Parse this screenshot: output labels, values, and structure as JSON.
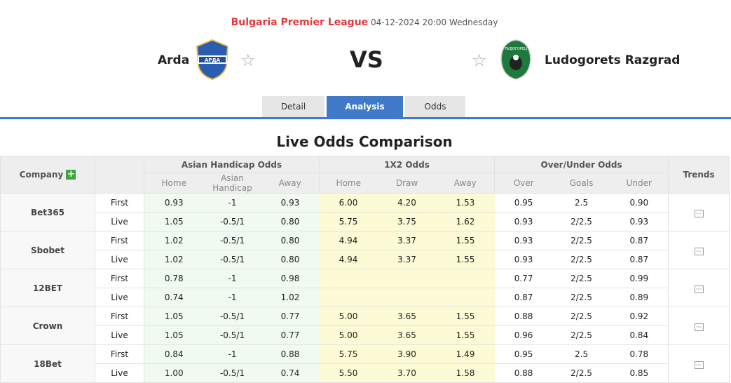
{
  "header": {
    "league": "Bulgaria Premier League",
    "datetime": "04-12-2024 20:00 Wednesday",
    "home": "Arda",
    "away": "Ludogorets Razgrad",
    "vs": "VS",
    "home_logo_text": "АРДА",
    "away_logo_text": "ЛУДОГОРЕЦ"
  },
  "tabs": [
    {
      "label": "Detail"
    },
    {
      "label": "Analysis",
      "active": true
    },
    {
      "label": "Odds"
    }
  ],
  "title": "Live Odds Comparison",
  "table": {
    "company": "Company",
    "plus": "+",
    "ah": "Asian Handicap Odds",
    "x12": "1X2 Odds",
    "ou": "Over/Under Odds",
    "trends": "Trends",
    "sub": [
      "Home",
      "Asian Handicap",
      "Away",
      "Home",
      "Draw",
      "Away",
      "Over",
      "Goals",
      "Under"
    ],
    "rows": [
      {
        "company": "Bet365",
        "first": [
          "First",
          "0.93",
          "-1",
          "0.93",
          "6.00",
          "4.20",
          "1.53",
          "0.95",
          "2.5",
          "0.90"
        ],
        "live": [
          "Live",
          "1.05",
          "-0.5/1",
          "0.80",
          "5.75",
          "3.75",
          "1.62",
          "0.93",
          "2/2.5",
          "0.93"
        ]
      },
      {
        "company": "Sbobet",
        "first": [
          "First",
          "1.02",
          "-0.5/1",
          "0.80",
          "4.94",
          "3.37",
          "1.55",
          "0.93",
          "2/2.5",
          "0.87"
        ],
        "live": [
          "Live",
          "1.02",
          "-0.5/1",
          "0.80",
          "4.94",
          "3.37",
          "1.55",
          "0.93",
          "2/2.5",
          "0.87"
        ]
      },
      {
        "company": "12BET",
        "first": [
          "First",
          "0.78",
          "-1",
          "0.98",
          "",
          "",
          "",
          "0.77",
          "2/2.5",
          "0.99"
        ],
        "live": [
          "Live",
          "0.74",
          "-1",
          "1.02",
          "",
          "",
          "",
          "0.87",
          "2/2.5",
          "0.89"
        ]
      },
      {
        "company": "Crown",
        "first": [
          "First",
          "1.05",
          "-0.5/1",
          "0.77",
          "5.00",
          "3.65",
          "1.55",
          "0.88",
          "2/2.5",
          "0.92"
        ],
        "live": [
          "Live",
          "1.05",
          "-0.5/1",
          "0.77",
          "5.00",
          "3.65",
          "1.55",
          "0.96",
          "2/2.5",
          "0.84"
        ]
      },
      {
        "company": "18Bet",
        "first": [
          "First",
          "0.84",
          "-1",
          "0.88",
          "5.75",
          "3.90",
          "1.49",
          "0.95",
          "2.5",
          "0.78"
        ],
        "live": [
          "Live",
          "1.00",
          "-0.5/1",
          "0.74",
          "5.50",
          "3.70",
          "1.58",
          "0.88",
          "2/2.5",
          "0.85"
        ]
      }
    ]
  }
}
